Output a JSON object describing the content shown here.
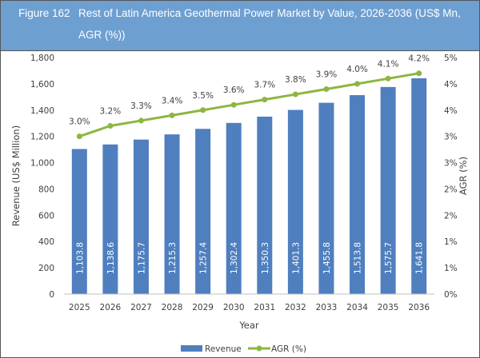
{
  "figure": {
    "number": "Figure 162",
    "title": "Rest of Latin America Geothermal Power Market by Value, 2026-2036 (US$ Mn, AGR (%))"
  },
  "colors": {
    "header": "#6e9fd1",
    "bar": "#4f7fbf",
    "line": "#8db641"
  },
  "chart_data": {
    "type": "bar",
    "title": "Rest of Latin America Geothermal Power Market by Value, 2026-2036 (US$ Mn, AGR (%))",
    "xlabel": "Year",
    "ylabel": "Revenue (US$ Million)",
    "y2label": "AGR (%)",
    "categories": [
      "2025",
      "2026",
      "2027",
      "2028",
      "2029",
      "2030",
      "2031",
      "2032",
      "2033",
      "2034",
      "2035",
      "2036"
    ],
    "ylim": [
      0,
      1800
    ],
    "yticks": [
      "0",
      "200",
      "400",
      "600",
      "800",
      "1,000",
      "1,200",
      "1,400",
      "1,600",
      "1,800"
    ],
    "y2lim": [
      0,
      4.5
    ],
    "y2ticks": [
      "0%",
      "1%",
      "1%",
      "2%",
      "2%",
      "3%",
      "3%",
      "4%",
      "4%",
      "5%"
    ],
    "grid": false,
    "legend": "bottom",
    "series": [
      {
        "name": "Revenue",
        "type": "bar",
        "axis": "left",
        "values": [
          1103.8,
          1138.6,
          1175.7,
          1215.3,
          1257.4,
          1302.4,
          1350.3,
          1401.3,
          1455.8,
          1513.8,
          1575.7,
          1641.8
        ],
        "labels": [
          "1,103.8",
          "1,138.6",
          "1,175.7",
          "1,215.3",
          "1,257.4",
          "1,302.4",
          "1,350.3",
          "1,401.3",
          "1,455.8",
          "1,513.8",
          "1,575.7",
          "1,641.8"
        ]
      },
      {
        "name": "AGR (%)",
        "type": "line",
        "axis": "right",
        "values": [
          3.0,
          3.2,
          3.3,
          3.4,
          3.5,
          3.6,
          3.7,
          3.8,
          3.9,
          4.0,
          4.1,
          4.2
        ],
        "labels": [
          "3.0%",
          "3.2%",
          "3.3%",
          "3.4%",
          "3.5%",
          "3.6%",
          "3.7%",
          "3.8%",
          "3.9%",
          "4.0%",
          "4.1%",
          "4.2%"
        ]
      }
    ]
  }
}
